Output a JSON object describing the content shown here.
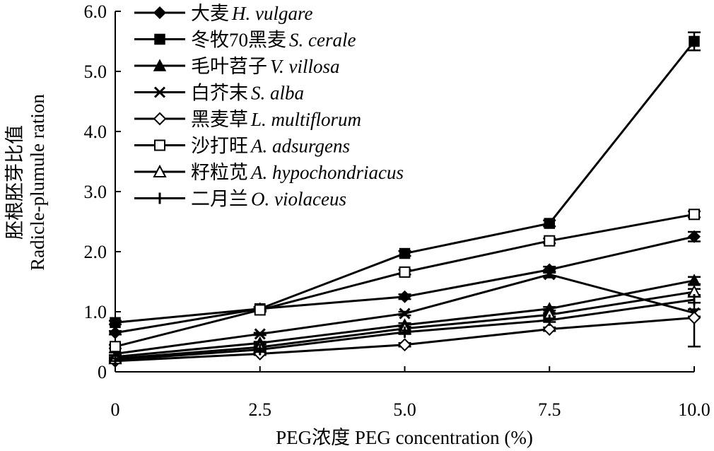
{
  "chart_data": {
    "type": "line",
    "xlabel": "PEG浓度 PEG concentration (%)",
    "ylabel_zh": "胚根胚芽比值",
    "ylabel_en": "Radicle-plumule ration",
    "x": [
      0,
      2.5,
      5.0,
      7.5,
      10.0
    ],
    "x_tick_labels": [
      "0",
      "2.5",
      "5.0",
      "7.5",
      "10.0"
    ],
    "xlim": [
      0,
      10
    ],
    "ylim": [
      0,
      6
    ],
    "y_ticks": [
      0,
      1,
      2,
      3,
      4,
      5,
      6
    ],
    "y_tick_labels": [
      "0",
      "1.0",
      "2.0",
      "3.0",
      "4.0",
      "5.0",
      "6.0"
    ],
    "grid": false,
    "legend_position": "top-left",
    "series": [
      {
        "name_zh": "大麦",
        "name_latin": "H. vulgare",
        "marker": "diamond-filled",
        "values": [
          0.65,
          1.05,
          1.25,
          1.7,
          2.25
        ],
        "errors": [
          0.03,
          0.03,
          0.04,
          0.05,
          0.08
        ]
      },
      {
        "name_zh": "冬牧70黑麦",
        "name_latin": "S. cerale",
        "marker": "square-filled",
        "values": [
          0.82,
          1.05,
          1.97,
          2.47,
          5.5
        ],
        "errors": [
          0.03,
          0.03,
          0.04,
          0.05,
          0.15
        ]
      },
      {
        "name_zh": "毛叶苕子",
        "name_latin": "V. villosa",
        "marker": "triangle-filled",
        "values": [
          0.25,
          0.48,
          0.78,
          1.05,
          1.52
        ],
        "errors": [
          0.02,
          0.02,
          0.03,
          0.03,
          0.06
        ]
      },
      {
        "name_zh": "白芥末",
        "name_latin": "S. alba",
        "marker": "x",
        "values": [
          0.3,
          0.63,
          0.97,
          1.62,
          0.98
        ],
        "errors": [
          0.02,
          0.02,
          0.03,
          0.05,
          0.06
        ]
      },
      {
        "name_zh": "黑麦草",
        "name_latin": "L. multiflorum",
        "marker": "diamond-open",
        "values": [
          0.18,
          0.3,
          0.45,
          0.71,
          0.9
        ],
        "errors": [
          0.02,
          0.02,
          0.03,
          0.03,
          0.48
        ]
      },
      {
        "name_zh": "沙打旺",
        "name_latin": "A. adsurgens",
        "marker": "square-open",
        "values": [
          0.42,
          1.03,
          1.66,
          2.18,
          2.62
        ],
        "errors": [
          0.03,
          0.03,
          0.04,
          0.04,
          0.05
        ]
      },
      {
        "name_zh": "籽粒苋",
        "name_latin": "A. hypochondriacus",
        "marker": "triangle-open",
        "values": [
          0.22,
          0.41,
          0.72,
          0.95,
          1.33
        ],
        "errors": [
          0.02,
          0.02,
          0.03,
          0.03,
          0.05
        ]
      },
      {
        "name_zh": "二月兰",
        "name_latin": "O. violaceus",
        "marker": "plus",
        "values": [
          0.2,
          0.37,
          0.66,
          0.86,
          1.2
        ],
        "errors": [
          0.02,
          0.02,
          0.03,
          0.03,
          0.05
        ]
      }
    ]
  }
}
